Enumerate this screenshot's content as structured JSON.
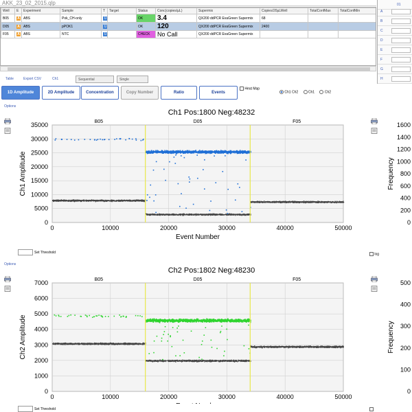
{
  "window": {
    "title": "AKK_23_02_2015.qlp"
  },
  "grid": {
    "headers": [
      "Well",
      "E",
      "Experiment",
      "Sample",
      "T",
      "Target",
      "Status",
      "Conc(copies/µL)",
      "Supermix",
      "Copies/20µLWell",
      "TotalConfMax",
      "TotalConfMin"
    ],
    "rows": [
      {
        "well": "B05",
        "e": "A",
        "experiment": "ABS",
        "sample": "Pok_CH-only",
        "t": "U",
        "target": "",
        "status": "OK",
        "status_kind": "ok",
        "conc": "3.4",
        "supermix": "QX200 ddPCR EvaGreen Supermix",
        "copies": "68",
        "selected": false
      },
      {
        "well": "D05",
        "e": "A",
        "experiment": "ABS",
        "sample": "pPOK1",
        "t": "U",
        "target": "",
        "status": "OK",
        "status_kind": "ok",
        "conc": "120",
        "supermix": "QX200 ddPCR EvaGreen Supermix",
        "copies": "2400",
        "selected": true
      },
      {
        "well": "F05",
        "e": "A",
        "experiment": "ABS",
        "sample": "NTC",
        "t": "U",
        "target": "",
        "status": "CHECK",
        "status_kind": "check",
        "conc": "No Call",
        "supermix": "QX200 ddPCR EvaGreen Supermix",
        "copies": "",
        "selected": false
      }
    ]
  },
  "right_panel": {
    "header": "01",
    "rows": [
      "A",
      "B",
      "C",
      "D",
      "E",
      "F",
      "G",
      "H"
    ]
  },
  "toolbar": {
    "table": "Table",
    "export": "Export CSV",
    "channel": "Ch1",
    "mode": "Sequential",
    "mode2": "Single"
  },
  "tabs": [
    {
      "label": "1D Amplitude",
      "state": "active"
    },
    {
      "label": "2D Amplitude",
      "state": "normal"
    },
    {
      "label": "Concentration",
      "state": "normal"
    },
    {
      "label": "Copy Number",
      "state": "disabled"
    },
    {
      "label": "Ratio",
      "state": "normal"
    },
    {
      "label": "Events",
      "state": "normal"
    }
  ],
  "heatmap_label": "Heat Map",
  "channel_radios": [
    "Ch1 Ch2",
    "Ch1",
    "Ch2"
  ],
  "options_label": "Options",
  "threshold_label": "Set Threshold",
  "log_label": "log",
  "colors": {
    "ch1": "#1f6fd6",
    "ch2": "#2fd42f",
    "neg": "#454545",
    "divider": "#e8e84a"
  },
  "chart_data": [
    {
      "type": "scatter",
      "title": "Ch1 Pos:1800 Neg:48232",
      "xlabel": "Event Number",
      "ylabel": "Ch1 Amplitude",
      "xlim": [
        0,
        50000
      ],
      "ylim": [
        0,
        35000
      ],
      "xticks": [
        0,
        10000,
        20000,
        30000,
        40000,
        50000
      ],
      "yticks": [
        0,
        5000,
        10000,
        15000,
        20000,
        25000,
        30000,
        35000
      ],
      "wells": [
        {
          "name": "B05",
          "x_range": [
            0,
            16000
          ],
          "negative_level": 8000,
          "positive_level": 30000,
          "positive_count": 34
        },
        {
          "name": "D05",
          "x_range": [
            16000,
            34000
          ],
          "negative_level": 3000,
          "positive_level": 25500
        },
        {
          "name": "F05",
          "x_range": [
            34000,
            50000
          ],
          "negative_level": 7500
        }
      ],
      "dividers": [
        16000,
        34000
      ],
      "right_axis": {
        "label": "Frequency",
        "ticks": [
          0,
          200,
          400,
          600,
          800,
          1000,
          1200,
          1400,
          1600
        ]
      },
      "grid": true
    },
    {
      "type": "scatter",
      "title": "Ch2 Pos:1802 Neg:48230",
      "xlabel": "Event Number",
      "ylabel": "Ch2 Amplitude",
      "xlim": [
        0,
        50000
      ],
      "ylim": [
        0,
        7000
      ],
      "xticks": [
        0,
        10000,
        20000,
        30000,
        40000,
        50000
      ],
      "yticks": [
        0,
        1000,
        2000,
        3000,
        4000,
        5000,
        6000,
        7000
      ],
      "wells": [
        {
          "name": "B05",
          "x_range": [
            0,
            16000
          ],
          "negative_level": 3100,
          "positive_level": 4900,
          "positive_count": 40
        },
        {
          "name": "D05",
          "x_range": [
            16000,
            34000
          ],
          "negative_level": 2000,
          "positive_level": 4600
        },
        {
          "name": "F05",
          "x_range": [
            34000,
            50000
          ],
          "negative_level": 2900
        }
      ],
      "dividers": [
        16000,
        34000
      ],
      "right_axis": {
        "label": "Frequency",
        "ticks": [
          0,
          100,
          200,
          300,
          400,
          500
        ]
      },
      "grid": true
    }
  ]
}
